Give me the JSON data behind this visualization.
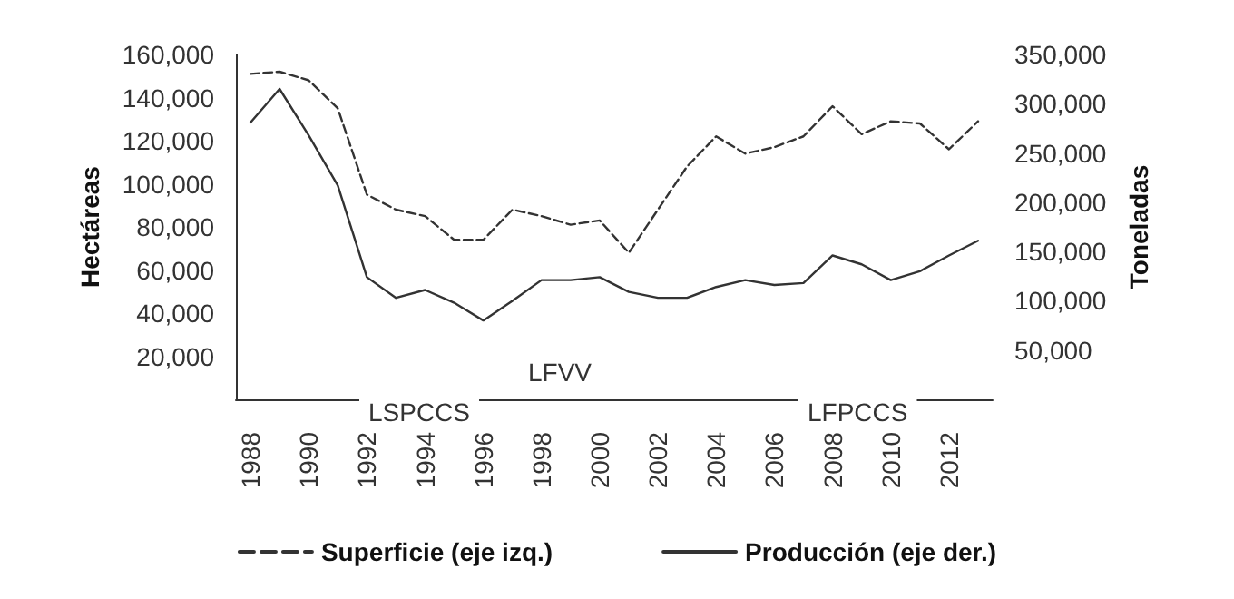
{
  "chart_data": {
    "type": "line",
    "ylabel": "Hectáreas",
    "y2label": "Toneladas",
    "categories": [
      "1988",
      null,
      "1990",
      null,
      "1992",
      null,
      "1994",
      null,
      "1996",
      null,
      "1998",
      null,
      "2000",
      null,
      "2002",
      null,
      "2004",
      null,
      "2006",
      null,
      "2008",
      null,
      "2010",
      null,
      "2012",
      null
    ],
    "series": [
      {
        "name": "Superficie (eje izq.)",
        "color": "#333333",
        "line_style": "dashed",
        "values": [
          151000,
          152000,
          148000,
          135000,
          95000,
          88000,
          85000,
          74000,
          74000,
          88000,
          85000,
          81000,
          83000,
          68000,
          88000,
          108000,
          122000,
          114000,
          117000,
          122000,
          136000,
          123000,
          129000,
          128000,
          116000,
          129000
        ]
      },
      {
        "name": "Producción (eje der.)",
        "color": "#333333",
        "line_style": "solid",
        "axis": "y2",
        "values": [
          281000,
          315000,
          268000,
          217000,
          124000,
          103000,
          111000,
          98000,
          80000,
          100000,
          121000,
          121000,
          124000,
          109000,
          103000,
          103000,
          114000,
          121000,
          116000,
          118000,
          146000,
          137000,
          121000,
          130000,
          146000,
          161000
        ]
      }
    ],
    "ylim": [
      0,
      160000
    ],
    "yticks": [
      {
        "value": 20000,
        "label": "20,000"
      },
      {
        "value": 40000,
        "label": "40,000"
      },
      {
        "value": 60000,
        "label": "60,000"
      },
      {
        "value": 80000,
        "label": "80,000"
      },
      {
        "value": 100000,
        "label": "100,000"
      },
      {
        "value": 120000,
        "label": "120,000"
      },
      {
        "value": 140000,
        "label": "140,000"
      },
      {
        "value": 160000,
        "label": "160,000"
      }
    ],
    "y2lim": [
      0,
      350000
    ],
    "y2ticks": [
      {
        "value": 50000,
        "label": "50,000"
      },
      {
        "value": 100000,
        "label": "100,000"
      },
      {
        "value": 150000,
        "label": "150,000"
      },
      {
        "value": 200000,
        "label": "200,000"
      },
      {
        "value": 250000,
        "label": "250,000"
      },
      {
        "value": 300000,
        "label": "300,000"
      },
      {
        "value": 350000,
        "label": "350,000"
      }
    ],
    "annotations": [
      "LFVV",
      "LSPCCS",
      "LFPCCS"
    ],
    "grid": false,
    "legend": "bottom",
    "marker": "none"
  }
}
